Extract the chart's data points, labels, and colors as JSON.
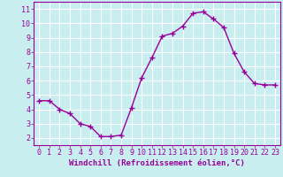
{
  "x": [
    0,
    1,
    2,
    3,
    4,
    5,
    6,
    7,
    8,
    9,
    10,
    11,
    12,
    13,
    14,
    15,
    16,
    17,
    18,
    19,
    20,
    21,
    22,
    23
  ],
  "y": [
    4.6,
    4.6,
    4.0,
    3.7,
    3.0,
    2.8,
    2.1,
    2.1,
    2.2,
    4.1,
    6.2,
    7.6,
    9.1,
    9.3,
    9.8,
    10.7,
    10.8,
    10.3,
    9.7,
    7.9,
    6.6,
    5.8,
    5.7,
    5.7
  ],
  "line_color": "#990099",
  "marker": "+",
  "marker_size": 4,
  "line_width": 1.0,
  "background_color": "#c8eef0",
  "grid_color": "#ffffff",
  "xlabel": "Windchill (Refroidissement éolien,°C)",
  "xlim": [
    -0.5,
    23.5
  ],
  "ylim": [
    1.5,
    11.5
  ],
  "yticks": [
    2,
    3,
    4,
    5,
    6,
    7,
    8,
    9,
    10,
    11
  ],
  "xticks": [
    0,
    1,
    2,
    3,
    4,
    5,
    6,
    7,
    8,
    9,
    10,
    11,
    12,
    13,
    14,
    15,
    16,
    17,
    18,
    19,
    20,
    21,
    22,
    23
  ],
  "tick_color": "#990099",
  "label_color": "#990099",
  "xlabel_fontsize": 6.5,
  "tick_fontsize": 6.0,
  "marker_edge_width": 1.0
}
